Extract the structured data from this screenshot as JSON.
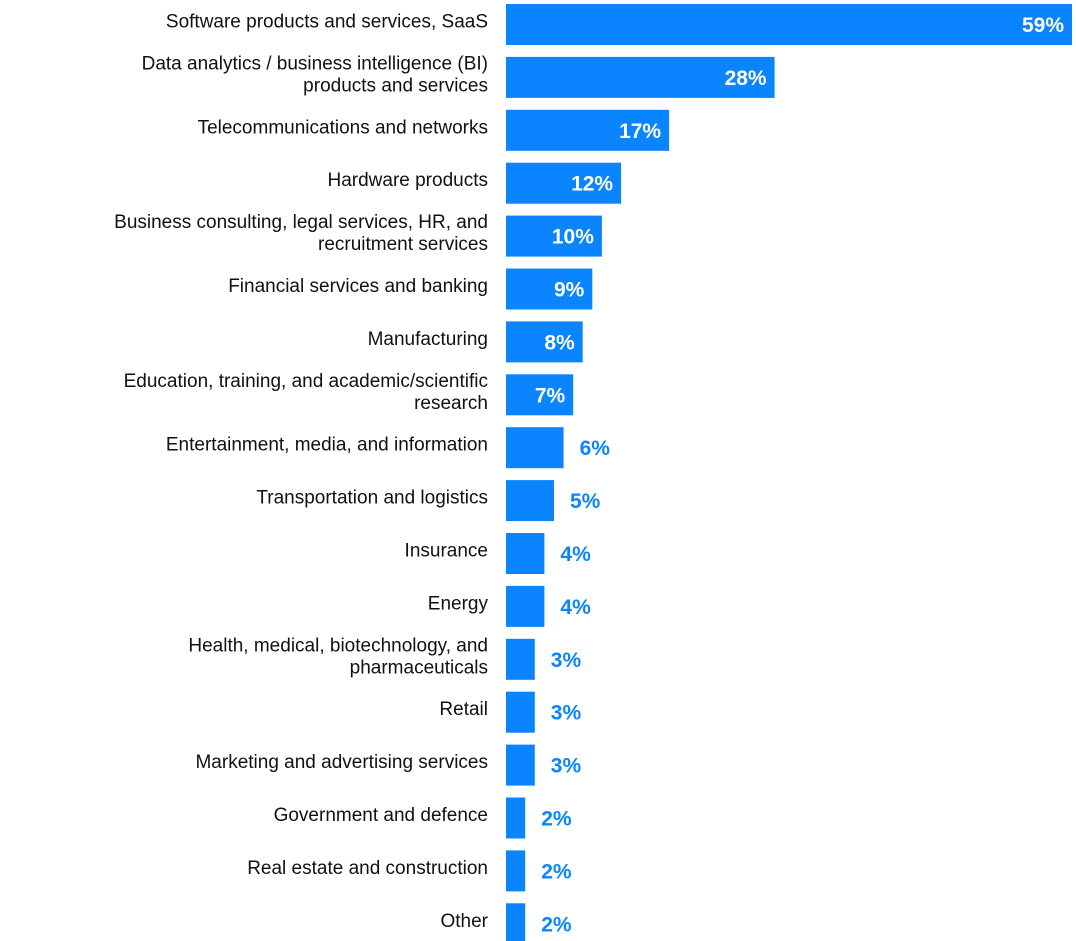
{
  "chart_data": {
    "type": "bar",
    "orientation": "horizontal",
    "title": "",
    "xlabel": "",
    "ylabel": "",
    "xlim": [
      0,
      59
    ],
    "grid": false,
    "legend": "none",
    "colors": {
      "bar": "#0A84FF",
      "label_inside": "#FFFFFF",
      "label_outside": "#0A84FF",
      "category_text": "#111111"
    },
    "categories": [
      [
        "Software products and services, SaaS"
      ],
      [
        "Data analytics / business intelligence (BI)",
        "products and services"
      ],
      [
        "Telecommunications and networks"
      ],
      [
        "Hardware products"
      ],
      [
        "Business consulting, legal services, HR, and",
        "recruitment services"
      ],
      [
        "Financial services and banking"
      ],
      [
        "Manufacturing"
      ],
      [
        "Education, training, and academic/scientific",
        "research"
      ],
      [
        "Entertainment, media, and information"
      ],
      [
        "Transportation and logistics"
      ],
      [
        "Insurance"
      ],
      [
        "Energy"
      ],
      [
        "Health, medical, biotechnology, and",
        "pharmaceuticals"
      ],
      [
        "Retail"
      ],
      [
        "Marketing and advertising services"
      ],
      [
        "Government and defence"
      ],
      [
        "Real estate and construction"
      ],
      [
        "Other"
      ]
    ],
    "values": [
      59,
      28,
      17,
      12,
      10,
      9,
      8,
      7,
      6,
      5,
      4,
      4,
      3,
      3,
      3,
      2,
      2,
      2
    ],
    "value_labels": [
      "59%",
      "28%",
      "17%",
      "12%",
      "10%",
      "9%",
      "8%",
      "7%",
      "6%",
      "5%",
      "4%",
      "4%",
      "3%",
      "3%",
      "3%",
      "2%",
      "2%",
      "2%"
    ]
  }
}
